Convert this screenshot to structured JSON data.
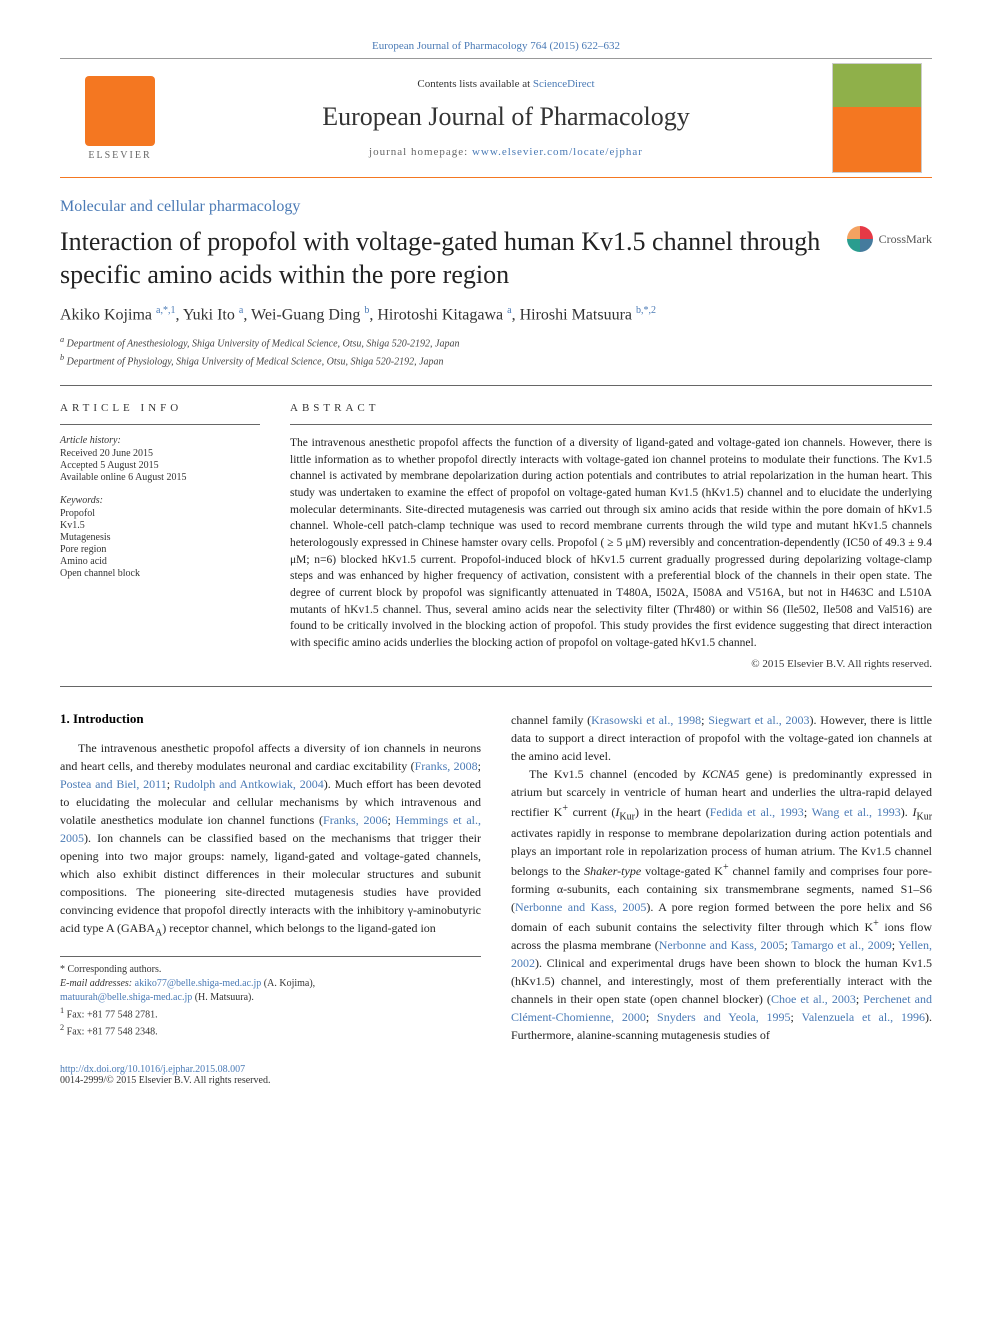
{
  "top_link": "European Journal of Pharmacology 764 (2015) 622–632",
  "header": {
    "contents_prefix": "Contents lists available at ",
    "contents_link": "ScienceDirect",
    "journal_name": "European Journal of Pharmacology",
    "homepage_prefix": "journal homepage: ",
    "homepage_url": "www.elsevier.com/locate/ejphar",
    "elsevier_label": "ELSEVIER"
  },
  "section_label": "Molecular and cellular pharmacology",
  "title": "Interaction of propofol with voltage-gated human Kv1.5 channel through specific amino acids within the pore region",
  "crossmark_label": "CrossMark",
  "authors_html": "Akiko Kojima <sup>a,*,1</sup>, Yuki Ito <sup>a</sup>, Wei-Guang Ding <sup>b</sup>, Hirotoshi Kitagawa <sup>a</sup>, Hiroshi Matsuura <sup>b,*,2</sup>",
  "affiliations": [
    "a Department of Anesthesiology, Shiga University of Medical Science, Otsu, Shiga 520-2192, Japan",
    "b Department of Physiology, Shiga University of Medical Science, Otsu, Shiga 520-2192, Japan"
  ],
  "article_info_heading": "ARTICLE INFO",
  "history": {
    "head": "Article history:",
    "items": [
      "Received 20 June 2015",
      "Accepted 5 August 2015",
      "Available online 6 August 2015"
    ]
  },
  "keywords": {
    "head": "Keywords:",
    "items": [
      "Propofol",
      "Kv1.5",
      "Mutagenesis",
      "Pore region",
      "Amino acid",
      "Open channel block"
    ]
  },
  "abstract_heading": "ABSTRACT",
  "abstract_text": "The intravenous anesthetic propofol affects the function of a diversity of ligand-gated and voltage-gated ion channels. However, there is little information as to whether propofol directly interacts with voltage-gated ion channel proteins to modulate their functions. The Kv1.5 channel is activated by membrane depolarization during action potentials and contributes to atrial repolarization in the human heart. This study was undertaken to examine the effect of propofol on voltage-gated human Kv1.5 (hKv1.5) channel and to elucidate the underlying molecular determinants. Site-directed mutagenesis was carried out through six amino acids that reside within the pore domain of hKv1.5 channel. Whole-cell patch-clamp technique was used to record membrane currents through the wild type and mutant hKv1.5 channels heterologously expressed in Chinese hamster ovary cells. Propofol ( ≥ 5 μM) reversibly and concentration-dependently (IC50 of 49.3 ± 9.4 μM; n=6) blocked hKv1.5 current. Propofol-induced block of hKv1.5 current gradually progressed during depolarizing voltage-clamp steps and was enhanced by higher frequency of activation, consistent with a preferential block of the channels in their open state. The degree of current block by propofol was significantly attenuated in T480A, I502A, I508A and V516A, but not in H463C and L510A mutants of hKv1.5 channel. Thus, several amino acids near the selectivity filter (Thr480) or within S6 (Ile502, Ile508 and Val516) are found to be critically involved in the blocking action of propofol. This study provides the first evidence suggesting that direct interaction with specific amino acids underlies the blocking action of propofol on voltage-gated hKv1.5 channel.",
  "copyright": "© 2015 Elsevier B.V. All rights reserved.",
  "section1_heading": "1. Introduction",
  "col_left_p1": "The intravenous anesthetic propofol affects a diversity of ion channels in neurons and heart cells, and thereby modulates neuronal and cardiac excitability (<span class=\"cite\">Franks, 2008</span>; <span class=\"cite\">Postea and Biel, 2011</span>; <span class=\"cite\">Rudolph and Antkowiak, 2004</span>). Much effort has been devoted to elucidating the molecular and cellular mechanisms by which intravenous and volatile anesthetics modulate ion channel functions (<span class=\"cite\">Franks, 2006</span>; <span class=\"cite\">Hemmings et al., 2005</span>). Ion channels can be classified based on the mechanisms that trigger their opening into two major groups: namely, ligand-gated and voltage-gated channels, which also exhibit distinct differences in their molecular structures and subunit compositions. The pioneering site-directed mutagenesis studies have provided convincing evidence that propofol directly interacts with the inhibitory γ-aminobutyric acid type A (GABA<sub>A</sub>) receptor channel, which belongs to the ligand-gated ion",
  "col_right_p1": "channel family (<span class=\"cite\">Krasowski et al., 1998</span>; <span class=\"cite\">Siegwart et al., 2003</span>). However, there is little data to support a direct interaction of propofol with the voltage-gated ion channels at the amino acid level.",
  "col_right_p2": "The Kv1.5 channel (encoded by <i>KCNA5</i> gene) is predominantly expressed in atrium but scarcely in ventricle of human heart and underlies the ultra-rapid delayed rectifier K<sup>+</sup> current (<i>I</i><sub>Kur</sub>) in the heart (<span class=\"cite\">Fedida et al., 1993</span>; <span class=\"cite\">Wang et al., 1993</span>). <i>I</i><sub>Kur</sub> activates rapidly in response to membrane depolarization during action potentials and plays an important role in repolarization process of human atrium. The Kv1.5 channel belongs to the <i>Shaker-type</i> voltage-gated K<sup>+</sup> channel family and comprises four pore-forming α-subunits, each containing six transmembrane segments, named S1–S6 (<span class=\"cite\">Nerbonne and Kass, 2005</span>). A pore region formed between the pore helix and S6 domain of each subunit contains the selectivity filter through which K<sup>+</sup> ions flow across the plasma membrane (<span class=\"cite\">Nerbonne and Kass, 2005</span>; <span class=\"cite\">Tamargo et al., 2009</span>; <span class=\"cite\">Yellen, 2002</span>). Clinical and experimental drugs have been shown to block the human Kv1.5 (hKv1.5) channel, and interestingly, most of them preferentially interact with the channels in their open state (open channel blocker) (<span class=\"cite\">Choe et al., 2003</span>; <span class=\"cite\">Perchenet and Clément-Chomienne, 2000</span>; <span class=\"cite\">Snyders and Yeola, 1995</span>; <span class=\"cite\">Valenzuela et al., 1996</span>). Furthermore, alanine-scanning mutagenesis studies of",
  "footnotes": {
    "corr": "* Corresponding authors.",
    "emails_label": "E-mail addresses: ",
    "email1": "akiko77@belle.shiga-med.ac.jp",
    "email1_name": " (A. Kojima),",
    "email2": "matuurah@belle.shiga-med.ac.jp",
    "email2_name": " (H. Matsuura).",
    "fax1": "1 Fax: +81 77 548 2781.",
    "fax2": "2 Fax: +81 77 548 2348."
  },
  "doi": {
    "url": "http://dx.doi.org/10.1016/j.ejphar.2015.08.007",
    "line2": "0014-2999/© 2015 Elsevier B.V. All rights reserved."
  },
  "colors": {
    "link": "#4a7ab5",
    "accent": "#f47721",
    "text": "#222222"
  }
}
